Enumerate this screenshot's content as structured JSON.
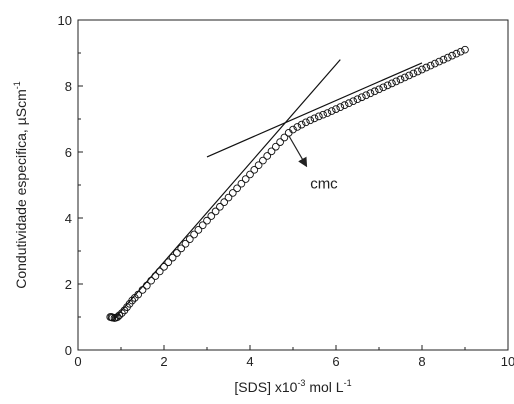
{
  "chart_data": {
    "type": "scatter",
    "xlabel": "[SDS] x10",
    "xlabel_sup": "-3",
    "xlabel_tail": " mol L",
    "xlabel_sup2": "-1",
    "ylabel": "Condutividade especifica, µScm",
    "ylabel_sup": "-1",
    "xlim": [
      0,
      10
    ],
    "ylim": [
      0,
      10
    ],
    "xticks": [
      0,
      2,
      4,
      6,
      8,
      10
    ],
    "yticks": [
      0,
      2,
      4,
      6,
      8,
      10
    ],
    "grid": false,
    "annotation": {
      "text": "cmc",
      "arrow_from": [
        4.9,
        6.5
      ],
      "arrow_to": [
        5.3,
        5.6
      ],
      "text_at": [
        5.4,
        4.9
      ]
    },
    "fit_lines": [
      {
        "x": [
          0.85,
          6.1
        ],
        "y": [
          0.95,
          8.8
        ]
      },
      {
        "x": [
          3.0,
          8.0
        ],
        "y": [
          5.85,
          8.7
        ]
      }
    ],
    "points": [
      [
        0.75,
        1.0
      ],
      [
        0.78,
        1.0
      ],
      [
        0.8,
        0.98
      ],
      [
        0.85,
        0.97
      ],
      [
        0.88,
        0.98
      ],
      [
        0.92,
        1.0
      ],
      [
        0.96,
        1.05
      ],
      [
        1.02,
        1.12
      ],
      [
        1.08,
        1.2
      ],
      [
        1.14,
        1.3
      ],
      [
        1.2,
        1.4
      ],
      [
        1.26,
        1.5
      ],
      [
        1.32,
        1.58
      ],
      [
        1.4,
        1.68
      ],
      [
        1.5,
        1.82
      ],
      [
        1.6,
        1.95
      ],
      [
        1.7,
        2.1
      ],
      [
        1.8,
        2.24
      ],
      [
        1.9,
        2.38
      ],
      [
        2.0,
        2.52
      ],
      [
        2.1,
        2.66
      ],
      [
        2.2,
        2.8
      ],
      [
        2.3,
        2.94
      ],
      [
        2.4,
        3.08
      ],
      [
        2.5,
        3.22
      ],
      [
        2.6,
        3.36
      ],
      [
        2.7,
        3.5
      ],
      [
        2.8,
        3.64
      ],
      [
        2.9,
        3.78
      ],
      [
        3.0,
        3.92
      ],
      [
        3.1,
        4.06
      ],
      [
        3.2,
        4.2
      ],
      [
        3.3,
        4.34
      ],
      [
        3.4,
        4.48
      ],
      [
        3.5,
        4.62
      ],
      [
        3.6,
        4.76
      ],
      [
        3.7,
        4.9
      ],
      [
        3.8,
        5.04
      ],
      [
        3.9,
        5.18
      ],
      [
        4.0,
        5.32
      ],
      [
        4.1,
        5.46
      ],
      [
        4.2,
        5.6
      ],
      [
        4.3,
        5.74
      ],
      [
        4.4,
        5.88
      ],
      [
        4.5,
        6.02
      ],
      [
        4.6,
        6.16
      ],
      [
        4.7,
        6.3
      ],
      [
        4.8,
        6.44
      ],
      [
        4.9,
        6.58
      ],
      [
        5.0,
        6.68
      ],
      [
        5.1,
        6.76
      ],
      [
        5.2,
        6.83
      ],
      [
        5.3,
        6.9
      ],
      [
        5.4,
        6.96
      ],
      [
        5.5,
        7.02
      ],
      [
        5.6,
        7.08
      ],
      [
        5.7,
        7.13
      ],
      [
        5.8,
        7.18
      ],
      [
        5.9,
        7.24
      ],
      [
        6.0,
        7.3
      ],
      [
        6.1,
        7.36
      ],
      [
        6.2,
        7.42
      ],
      [
        6.3,
        7.48
      ],
      [
        6.4,
        7.54
      ],
      [
        6.5,
        7.6
      ],
      [
        6.6,
        7.66
      ],
      [
        6.7,
        7.72
      ],
      [
        6.8,
        7.78
      ],
      [
        6.9,
        7.84
      ],
      [
        7.0,
        7.9
      ],
      [
        7.1,
        7.96
      ],
      [
        7.2,
        8.02
      ],
      [
        7.3,
        8.08
      ],
      [
        7.4,
        8.14
      ],
      [
        7.5,
        8.2
      ],
      [
        7.6,
        8.26
      ],
      [
        7.7,
        8.32
      ],
      [
        7.8,
        8.38
      ],
      [
        7.9,
        8.44
      ],
      [
        8.0,
        8.5
      ],
      [
        8.1,
        8.56
      ],
      [
        8.2,
        8.62
      ],
      [
        8.3,
        8.68
      ],
      [
        8.4,
        8.74
      ],
      [
        8.5,
        8.8
      ],
      [
        8.6,
        8.86
      ],
      [
        8.7,
        8.92
      ],
      [
        8.8,
        8.98
      ],
      [
        8.9,
        9.04
      ],
      [
        9.0,
        9.1
      ]
    ]
  }
}
